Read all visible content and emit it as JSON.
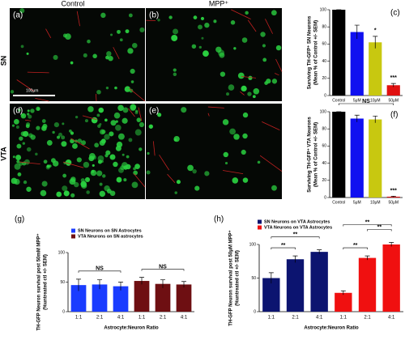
{
  "images": {
    "columns": [
      "Control",
      "MPP⁺"
    ],
    "rows": [
      "SN",
      "VTA"
    ],
    "panel_labels": [
      "(a)",
      "(b)",
      "(d)",
      "(e)"
    ],
    "scale_bar": "100μm"
  },
  "chart_data": [
    {
      "type": "bar",
      "label": "(c)",
      "ylabel": [
        "Surviving TH-GFP⁺ SN Neurons",
        "(Mean % of Control +/- SEM)"
      ],
      "categories": [
        "Control",
        "5μM",
        "10μM",
        "50μM"
      ],
      "values": [
        100,
        74,
        62,
        12
      ],
      "errors": [
        0,
        8,
        7,
        2
      ],
      "colors": [
        "#000000",
        "#1010f0",
        "#c8c810",
        "#e01010"
      ],
      "ylim": [
        0,
        100
      ],
      "yticks": [
        0,
        20,
        40,
        60,
        80,
        100
      ],
      "annotations": [
        "*",
        "***"
      ]
    },
    {
      "type": "bar",
      "label": "(f)",
      "ylabel": [
        "Surviving TH-GFP⁺ VTA Neurons",
        "(Mean % of Control +/- SEM)"
      ],
      "categories": [
        "Control",
        "5μM",
        "10μM",
        "50μM"
      ],
      "values": [
        100,
        92,
        91,
        1
      ],
      "errors": [
        0,
        4,
        4,
        0.5
      ],
      "colors": [
        "#000000",
        "#1010f0",
        "#c8c810",
        "#e01010"
      ],
      "ylim": [
        0,
        100
      ],
      "yticks": [
        0,
        20,
        40,
        60,
        80,
        100
      ],
      "annotations": [
        "NS",
        "***"
      ]
    },
    {
      "type": "bar",
      "label": "(g)",
      "ylabel": [
        "TH-GFP Neuron survival post 50mM MPP⁺",
        "(%untreated ctl +/- SEM)"
      ],
      "xlabel": "Astrocyte:Neuron Ratio",
      "categories": [
        "1:1",
        "2:1",
        "4:1",
        "1:1",
        "2:1",
        "4:1"
      ],
      "series": [
        {
          "name": "SN Neurons on SN Astrocytes",
          "color": "#1a3cff",
          "values": [
            45,
            46,
            43,
            null,
            null,
            null
          ],
          "errors": [
            10,
            8,
            7,
            null,
            null,
            null
          ]
        },
        {
          "name": "VTA Neurons on SN astrocytes",
          "color": "#6e0f12",
          "values": [
            null,
            null,
            null,
            52,
            47,
            46
          ],
          "errors": [
            null,
            null,
            null,
            6,
            7,
            5
          ]
        }
      ],
      "ylim": [
        0,
        100
      ],
      "yticks": [
        0,
        50,
        100
      ],
      "annotations": [
        "NS",
        "NS"
      ]
    },
    {
      "type": "bar",
      "label": "(h)",
      "ylabel": [
        "TH-GFP Neuron survival post 50μM MPP⁺",
        "(%untreated ctl +/- SEM)"
      ],
      "xlabel": "Astrocyte:Neuron Ratio",
      "categories": [
        "1:1",
        "2:1",
        "4:1",
        "1:1",
        "2:1",
        "4:1"
      ],
      "series": [
        {
          "name": "SN Neurons on VTA Astrocytes",
          "color": "#0c1470",
          "values": [
            50,
            78,
            89,
            null,
            null,
            null
          ],
          "errors": [
            8,
            5,
            3,
            null,
            null,
            null
          ]
        },
        {
          "name": "VTA Neurons on VTA Astrocytes",
          "color": "#f01010",
          "values": [
            null,
            null,
            null,
            28,
            80,
            100
          ],
          "errors": [
            null,
            null,
            null,
            3,
            3,
            3
          ]
        }
      ],
      "ylim": [
        0,
        100
      ],
      "yticks": [
        0,
        50,
        100
      ],
      "annotations": [
        "**",
        "**",
        "**",
        "**",
        "**"
      ]
    }
  ]
}
